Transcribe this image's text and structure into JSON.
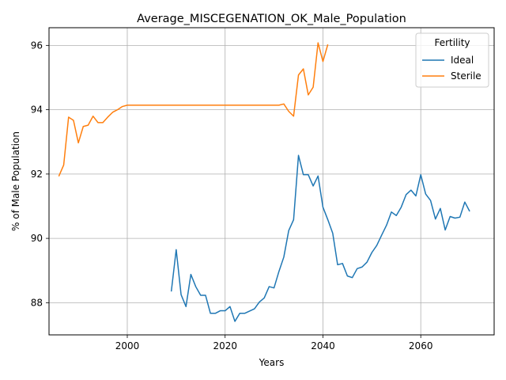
{
  "chart_data": {
    "type": "line",
    "title": "Average_MISCEGENATION_OK_Male_Population",
    "xlabel": "Years",
    "ylabel": "% of Male Population",
    "xlim": [
      1984,
      2075
    ],
    "ylim": [
      87.0,
      96.55
    ],
    "xticks": [
      2000,
      2020,
      2040,
      2060
    ],
    "yticks": [
      88,
      90,
      92,
      94,
      96
    ],
    "grid": true,
    "legend": {
      "title": "Fertility",
      "position": "top-right"
    },
    "series": [
      {
        "name": "Ideal",
        "color": "#1f77b4",
        "x": [
          2009,
          2010,
          2011,
          2012,
          2013,
          2014,
          2015,
          2016,
          2017,
          2018,
          2019,
          2020,
          2021,
          2022,
          2023,
          2024,
          2025,
          2026,
          2027,
          2028,
          2029,
          2030,
          2031,
          2032,
          2033,
          2034,
          2035,
          2036,
          2037,
          2038,
          2039,
          2040,
          2041,
          2042,
          2043,
          2044,
          2045,
          2046,
          2047,
          2048,
          2049,
          2050,
          2051,
          2052,
          2053,
          2054,
          2055,
          2056,
          2057,
          2058,
          2059,
          2060,
          2061,
          2062,
          2063,
          2064,
          2065,
          2066,
          2067,
          2068,
          2069,
          2070
        ],
        "y": [
          88.35,
          89.65,
          88.25,
          87.88,
          88.88,
          88.5,
          88.23,
          88.23,
          87.67,
          87.67,
          87.75,
          87.75,
          87.88,
          87.42,
          87.67,
          87.67,
          87.74,
          87.81,
          88.02,
          88.15,
          88.5,
          88.46,
          88.97,
          89.42,
          90.24,
          90.58,
          92.58,
          91.98,
          91.98,
          91.63,
          91.94,
          90.97,
          90.58,
          90.16,
          89.18,
          89.22,
          88.83,
          88.78,
          89.06,
          89.11,
          89.26,
          89.56,
          89.78,
          90.1,
          90.41,
          90.82,
          90.71,
          90.97,
          91.36,
          91.5,
          91.32,
          91.98,
          91.38,
          91.18,
          90.6,
          90.93,
          90.26,
          90.68,
          90.63,
          90.66,
          91.13,
          90.84
        ]
      },
      {
        "name": "Sterile",
        "color": "#ff7f0e",
        "x": [
          1986,
          1987,
          1988,
          1989,
          1990,
          1991,
          1992,
          1993,
          1994,
          1995,
          1996,
          1997,
          1998,
          1999,
          2000,
          2001,
          2002,
          2003,
          2004,
          2005,
          2006,
          2007,
          2008,
          2009,
          2010,
          2011,
          2012,
          2013,
          2014,
          2015,
          2016,
          2017,
          2018,
          2019,
          2020,
          2021,
          2022,
          2023,
          2024,
          2025,
          2026,
          2027,
          2028,
          2029,
          2030,
          2031,
          2032,
          2033,
          2034,
          2035,
          2036,
          2037,
          2038,
          2039,
          2040,
          2041
        ],
        "y": [
          91.93,
          92.28,
          93.77,
          93.67,
          92.97,
          93.48,
          93.52,
          93.8,
          93.6,
          93.6,
          93.77,
          93.92,
          94.0,
          94.1,
          94.14,
          94.14,
          94.14,
          94.14,
          94.14,
          94.14,
          94.14,
          94.14,
          94.14,
          94.14,
          94.14,
          94.14,
          94.14,
          94.14,
          94.14,
          94.14,
          94.14,
          94.14,
          94.14,
          94.14,
          94.14,
          94.14,
          94.14,
          94.14,
          94.14,
          94.14,
          94.14,
          94.14,
          94.14,
          94.14,
          94.14,
          94.14,
          94.18,
          93.95,
          93.8,
          95.08,
          95.27,
          94.46,
          94.7,
          96.08,
          95.5,
          96.03
        ]
      }
    ]
  }
}
